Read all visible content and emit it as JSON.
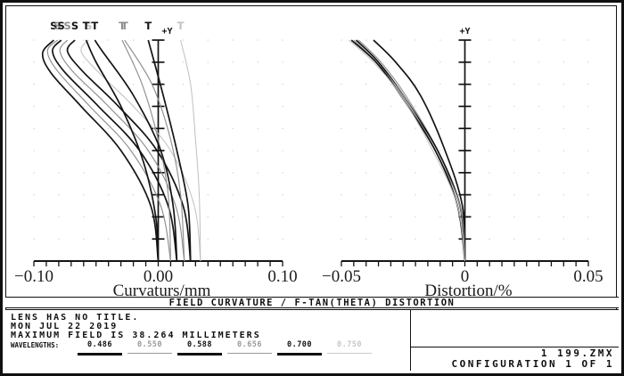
{
  "title_bar": {
    "text": "FIELD CURVATURE / F-TAN(THETA) DISTORTION"
  },
  "info": {
    "line1": "LENS HAS NO TITLE.",
    "line2": "MON JUL 22 2019",
    "line3": "MAXIMUM FIELD IS 38.264 MILLIMETERS",
    "wavelengths_label": "WAVELENGTHS:",
    "wavelengths": [
      {
        "value": "0.486",
        "tone": "dark"
      },
      {
        "value": "0.550",
        "tone": "gray"
      },
      {
        "value": "0.588",
        "tone": "dark"
      },
      {
        "value": "0.656",
        "tone": "gray"
      },
      {
        "value": "0.700",
        "tone": "dark"
      },
      {
        "value": "0.750",
        "tone": "light"
      }
    ]
  },
  "config_box": {
    "file": "1 199.ZMX",
    "configuration": "CONFIGURATION 1 OF 1"
  },
  "colors": {
    "dark": "#141414",
    "gray": "#8f8f8f",
    "light": "#c2c2c2",
    "grid_dot": "#d9d9d9"
  },
  "chart_data": {
    "type": "line",
    "title": "FIELD CURVATURE / F-TAN(THETA) DISTORTION",
    "max_field_mm": 38.264,
    "y_axis": {
      "label": "+Y",
      "quantity": "field height fraction (0 to 38.264 mm)",
      "range": [
        0,
        1
      ]
    },
    "panels": [
      {
        "name": "field-curvature",
        "xlabel": "Curvaturs/mm",
        "xlim": [
          -0.1,
          0.1
        ],
        "xticks": [
          {
            "v": -0.1,
            "label": "−0.10"
          },
          {
            "v": 0.0,
            "label": "0.00"
          },
          {
            "v": 0.1,
            "label": "0.10"
          }
        ],
        "minor_tick_intervals": 20,
        "yaxis_label": "+Y",
        "curve_labels": [
          {
            "text": "S",
            "v": -0.084,
            "tone": "dark"
          },
          {
            "text": "S",
            "v": -0.081,
            "tone": "gray"
          },
          {
            "text": "S",
            "v": -0.078,
            "tone": "dark"
          },
          {
            "text": "S",
            "v": -0.073,
            "tone": "gray"
          },
          {
            "text": "S",
            "v": -0.067,
            "tone": "dark"
          },
          {
            "text": "S",
            "v": -0.056,
            "tone": "light"
          },
          {
            "text": "T",
            "v": -0.058,
            "tone": "dark"
          },
          {
            "text": "T",
            "v": -0.051,
            "tone": "dark"
          },
          {
            "text": "T",
            "v": -0.029,
            "tone": "gray"
          },
          {
            "text": "T",
            "v": -0.027,
            "tone": "gray"
          },
          {
            "text": "T",
            "v": -0.008,
            "tone": "dark"
          },
          {
            "text": "T",
            "v": 0.018,
            "tone": "light"
          }
        ],
        "series": [
          {
            "name": "S 0.486",
            "tone": "dark",
            "points": [
              [
                0.0,
                0
              ],
              [
                -0.006,
                0.25
              ],
              [
                -0.03,
                0.5
              ],
              [
                -0.062,
                0.7
              ],
              [
                -0.086,
                0.85
              ],
              [
                -0.093,
                0.94
              ],
              [
                -0.084,
                1.0
              ]
            ]
          },
          {
            "name": "S 0.550",
            "tone": "gray",
            "points": [
              [
                0.01,
                0
              ],
              [
                0.002,
                0.25
              ],
              [
                -0.022,
                0.5
              ],
              [
                -0.055,
                0.7
              ],
              [
                -0.081,
                0.86
              ],
              [
                -0.089,
                0.95
              ],
              [
                -0.081,
                1.0
              ]
            ]
          },
          {
            "name": "S 0.588",
            "tone": "dark",
            "points": [
              [
                0.015,
                0
              ],
              [
                0.008,
                0.25
              ],
              [
                -0.015,
                0.5
              ],
              [
                -0.048,
                0.7
              ],
              [
                -0.076,
                0.86
              ],
              [
                -0.085,
                0.95
              ],
              [
                -0.078,
                1.0
              ]
            ]
          },
          {
            "name": "S 0.656",
            "tone": "gray",
            "points": [
              [
                0.021,
                0
              ],
              [
                0.014,
                0.25
              ],
              [
                -0.008,
                0.5
              ],
              [
                -0.04,
                0.7
              ],
              [
                -0.069,
                0.86
              ],
              [
                -0.079,
                0.95
              ],
              [
                -0.073,
                1.0
              ]
            ]
          },
          {
            "name": "S 0.700",
            "tone": "dark",
            "points": [
              [
                0.026,
                0
              ],
              [
                0.02,
                0.25
              ],
              [
                -0.001,
                0.5
              ],
              [
                -0.032,
                0.7
              ],
              [
                -0.061,
                0.86
              ],
              [
                -0.073,
                0.95
              ],
              [
                -0.067,
                1.0
              ]
            ]
          },
          {
            "name": "S 0.750",
            "tone": "light",
            "points": [
              [
                0.034,
                0
              ],
              [
                0.029,
                0.25
              ],
              [
                0.01,
                0.5
              ],
              [
                -0.02,
                0.7
              ],
              [
                -0.049,
                0.86
              ],
              [
                -0.062,
                0.95
              ],
              [
                -0.056,
                1.0
              ]
            ]
          },
          {
            "name": "T 0.486",
            "tone": "dark",
            "points": [
              [
                0.0,
                0
              ],
              [
                -0.002,
                0.2
              ],
              [
                -0.012,
                0.45
              ],
              [
                -0.03,
                0.7
              ],
              [
                -0.05,
                0.9
              ],
              [
                -0.058,
                1.0
              ]
            ]
          },
          {
            "name": "T 0.550",
            "tone": "gray",
            "points": [
              [
                0.01,
                0
              ],
              [
                0.008,
                0.3
              ],
              [
                0.0,
                0.55
              ],
              [
                -0.013,
                0.8
              ],
              [
                -0.029,
                1.0
              ]
            ]
          },
          {
            "name": "T 0.588",
            "tone": "dark",
            "points": [
              [
                0.015,
                0
              ],
              [
                0.012,
                0.25
              ],
              [
                0.002,
                0.5
              ],
              [
                -0.02,
                0.75
              ],
              [
                -0.045,
                0.95
              ],
              [
                -0.051,
                1.0
              ]
            ]
          },
          {
            "name": "T 0.656",
            "tone": "gray",
            "points": [
              [
                0.021,
                0
              ],
              [
                0.018,
                0.3
              ],
              [
                0.01,
                0.55
              ],
              [
                -0.005,
                0.8
              ],
              [
                -0.027,
                1.0
              ]
            ]
          },
          {
            "name": "T 0.700",
            "tone": "dark",
            "points": [
              [
                0.026,
                0
              ],
              [
                0.024,
                0.25
              ],
              [
                0.015,
                0.5
              ],
              [
                0.004,
                0.75
              ],
              [
                -0.008,
                1.0
              ]
            ]
          },
          {
            "name": "T 0.750",
            "tone": "light",
            "points": [
              [
                0.034,
                0
              ],
              [
                0.033,
                0.3
              ],
              [
                0.03,
                0.55
              ],
              [
                0.026,
                0.8
              ],
              [
                0.018,
                1.0
              ]
            ]
          }
        ]
      },
      {
        "name": "distortion",
        "xlabel": "Distortion/%",
        "xlim": [
          -0.05,
          0.05
        ],
        "xticks": [
          {
            "v": -0.05,
            "label": "−0.05"
          },
          {
            "v": 0,
            "label": "0"
          },
          {
            "v": 0.05,
            "label": "0.05"
          }
        ],
        "minor_tick_intervals": 20,
        "yaxis_label": "+Y",
        "curve_labels": [],
        "series": [
          {
            "name": "distortion 0.486",
            "tone": "dark",
            "points": [
              [
                0,
                0
              ],
              [
                -0.001,
                0.25
              ],
              [
                -0.008,
                0.5
              ],
              [
                -0.018,
                0.75
              ],
              [
                -0.028,
                0.9
              ],
              [
                -0.037,
                1.0
              ]
            ]
          },
          {
            "name": "distortion 0.550",
            "tone": "gray",
            "points": [
              [
                0,
                0
              ],
              [
                -0.002,
                0.25
              ],
              [
                -0.011,
                0.5
              ],
              [
                -0.024,
                0.75
              ],
              [
                -0.034,
                0.9
              ],
              [
                -0.043,
                1.0
              ]
            ]
          },
          {
            "name": "distortion 0.588",
            "tone": "dark",
            "points": [
              [
                0,
                0
              ],
              [
                -0.002,
                0.25
              ],
              [
                -0.011,
                0.5
              ],
              [
                -0.025,
                0.75
              ],
              [
                -0.035,
                0.9
              ],
              [
                -0.044,
                1.0
              ]
            ]
          },
          {
            "name": "distortion 0.656",
            "tone": "gray",
            "points": [
              [
                0,
                0
              ],
              [
                -0.002,
                0.25
              ],
              [
                -0.012,
                0.5
              ],
              [
                -0.025,
                0.75
              ],
              [
                -0.036,
                0.9
              ],
              [
                -0.045,
                1.0
              ]
            ]
          },
          {
            "name": "distortion 0.700",
            "tone": "dark",
            "points": [
              [
                0,
                0
              ],
              [
                -0.003,
                0.25
              ],
              [
                -0.012,
                0.5
              ],
              [
                -0.026,
                0.75
              ],
              [
                -0.036,
                0.9
              ],
              [
                -0.046,
                1.0
              ]
            ]
          },
          {
            "name": "distortion 0.750",
            "tone": "light",
            "points": [
              [
                0,
                0
              ],
              [
                -0.003,
                0.25
              ],
              [
                -0.013,
                0.5
              ],
              [
                -0.026,
                0.75
              ],
              [
                -0.037,
                0.9
              ],
              [
                -0.047,
                1.0
              ]
            ]
          }
        ]
      }
    ]
  }
}
